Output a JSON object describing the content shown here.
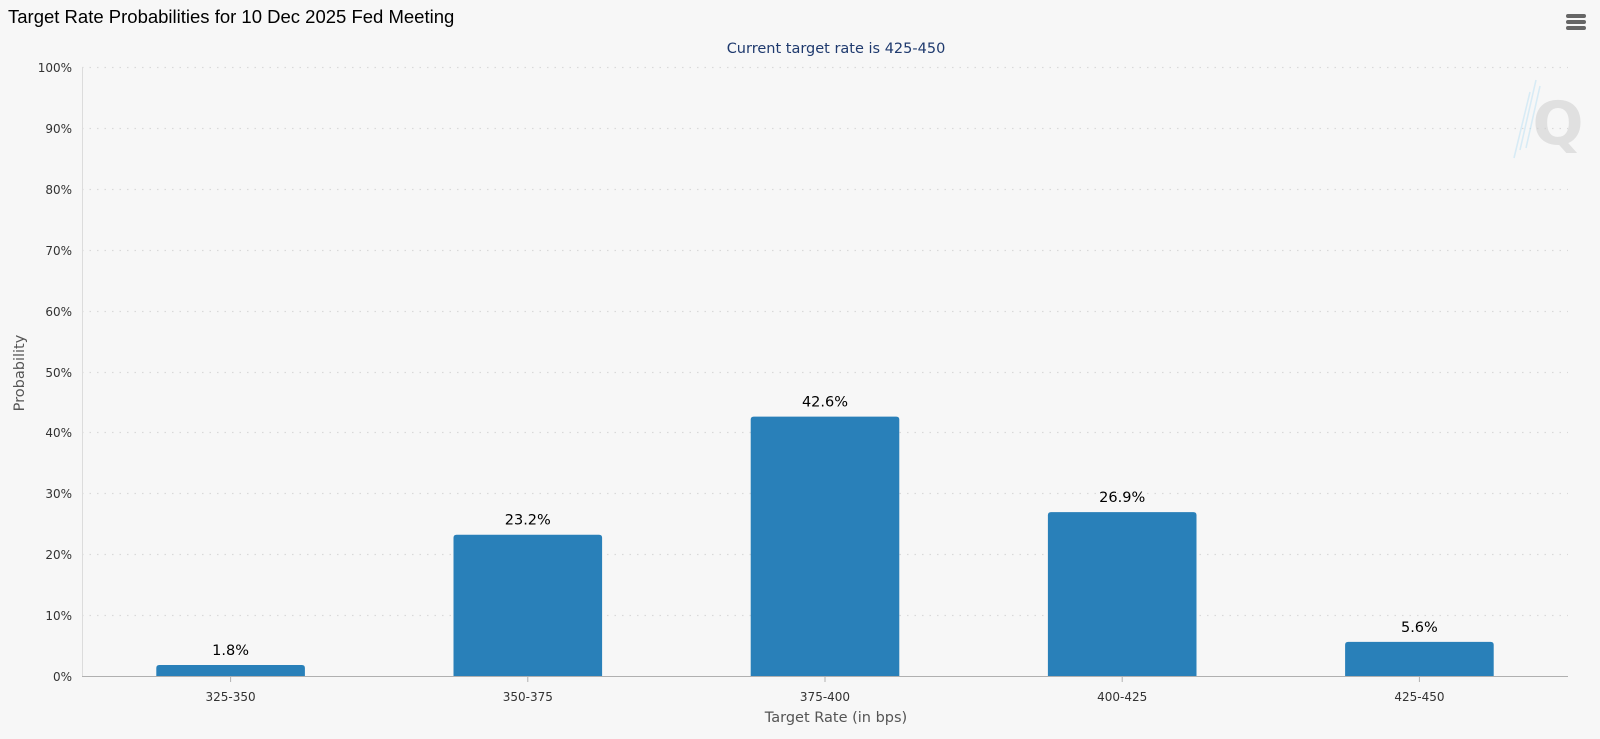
{
  "page": {
    "title": "Target Rate Probabilities for 10 Dec 2025 Fed Meeting"
  },
  "chart_data": {
    "type": "bar",
    "title": "Target Rate Probabilities for 10 Dec 2025 Fed Meeting",
    "subtitle": "Current target rate is 425-450",
    "xlabel": "Target Rate (in bps)",
    "ylabel": "Probability",
    "categories": [
      "325-350",
      "350-375",
      "375-400",
      "400-425",
      "425-450"
    ],
    "values": [
      1.8,
      23.2,
      42.6,
      26.9,
      5.6
    ],
    "data_labels": [
      "1.8%",
      "23.2%",
      "42.6%",
      "26.9%",
      "5.6%"
    ],
    "yticks": [
      "0%",
      "10%",
      "20%",
      "30%",
      "40%",
      "50%",
      "60%",
      "70%",
      "80%",
      "90%",
      "100%"
    ],
    "ylim": [
      0,
      100
    ],
    "grid": true,
    "legend": "none",
    "colors": {
      "bar": "#2980b9",
      "subtitle": "#1f3a6e",
      "grid": "#d9d9d9",
      "axis": "#b0b0b0",
      "tick_text": "#333333",
      "axis_label": "#555555",
      "label_text": "#000000"
    }
  },
  "icons": {
    "menu": "hamburger-menu-icon",
    "watermark": "q-logo-watermark"
  }
}
